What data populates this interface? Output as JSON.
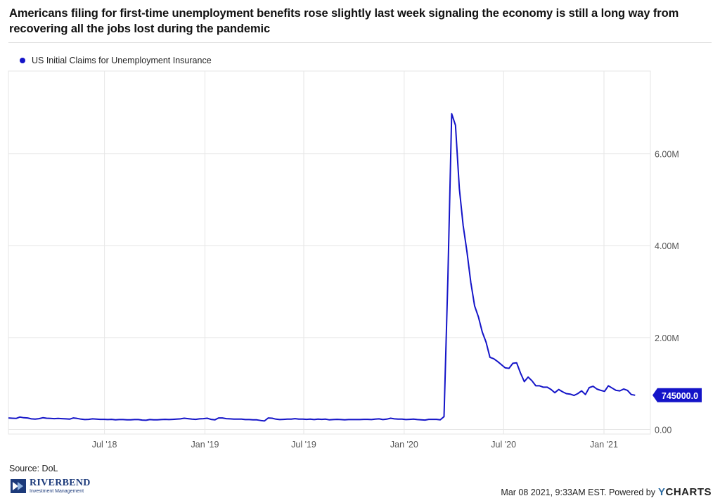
{
  "title": "Americans filing for first-time unemployment benefits rose slightly last week signaling the economy is still a long way from recovering all the jobs lost during the pandemic",
  "source": "Source: DoL",
  "logo": {
    "name": "RIVERBEND",
    "sub": "Investment Management"
  },
  "footer": {
    "timestamp": "Mar 08 2021, 9:33AM EST. Powered by",
    "brand_y": "Y",
    "brand_rest": "CHARTS"
  },
  "colors": {
    "series": "#1414c8",
    "grid": "#e6e6e6",
    "axis_text": "#555555"
  },
  "chart_data": {
    "type": "line",
    "title": "Americans filing for first-time unemployment benefits rose slightly last week signaling the economy is still a long way from recovering all the jobs lost during the pandemic",
    "xlabel": "",
    "ylabel": "",
    "x_range": [
      "2018-01-06",
      "2021-03-27"
    ],
    "ylim": [
      -100000,
      7800000
    ],
    "grid": true,
    "legend_position": "top-left",
    "x_ticks": [
      {
        "date": "2018-07-01",
        "label": "Jul '18"
      },
      {
        "date": "2019-01-01",
        "label": "Jan '19"
      },
      {
        "date": "2019-07-01",
        "label": "Jul '19"
      },
      {
        "date": "2020-01-01",
        "label": "Jan '20"
      },
      {
        "date": "2020-07-01",
        "label": "Jul '20"
      },
      {
        "date": "2021-01-01",
        "label": "Jan '21"
      }
    ],
    "y_ticks": [
      {
        "value": 0,
        "label": "0.00"
      },
      {
        "value": 2000000,
        "label": "2.00M"
      },
      {
        "value": 4000000,
        "label": "4.00M"
      },
      {
        "value": 6000000,
        "label": "6.00M"
      }
    ],
    "last_value_label": "745000.0",
    "series": [
      {
        "name": "US Initial Claims for Unemployment Insurance",
        "color": "#1414c8",
        "x": [
          "2018-01-06",
          "2018-01-13",
          "2018-01-20",
          "2018-01-27",
          "2018-02-03",
          "2018-02-10",
          "2018-02-17",
          "2018-02-24",
          "2018-03-03",
          "2018-03-10",
          "2018-03-17",
          "2018-03-24",
          "2018-03-31",
          "2018-04-07",
          "2018-04-14",
          "2018-04-21",
          "2018-04-28",
          "2018-05-05",
          "2018-05-12",
          "2018-05-19",
          "2018-05-26",
          "2018-06-02",
          "2018-06-09",
          "2018-06-16",
          "2018-06-23",
          "2018-06-30",
          "2018-07-07",
          "2018-07-14",
          "2018-07-21",
          "2018-07-28",
          "2018-08-04",
          "2018-08-11",
          "2018-08-18",
          "2018-08-25",
          "2018-09-01",
          "2018-09-08",
          "2018-09-15",
          "2018-09-22",
          "2018-09-29",
          "2018-10-06",
          "2018-10-13",
          "2018-10-20",
          "2018-10-27",
          "2018-11-03",
          "2018-11-10",
          "2018-11-17",
          "2018-11-24",
          "2018-12-01",
          "2018-12-08",
          "2018-12-15",
          "2018-12-22",
          "2018-12-29",
          "2019-01-05",
          "2019-01-12",
          "2019-01-19",
          "2019-01-26",
          "2019-02-02",
          "2019-02-09",
          "2019-02-16",
          "2019-02-23",
          "2019-03-02",
          "2019-03-09",
          "2019-03-16",
          "2019-03-23",
          "2019-03-30",
          "2019-04-06",
          "2019-04-13",
          "2019-04-20",
          "2019-04-27",
          "2019-05-04",
          "2019-05-11",
          "2019-05-18",
          "2019-05-25",
          "2019-06-01",
          "2019-06-08",
          "2019-06-15",
          "2019-06-22",
          "2019-06-29",
          "2019-07-06",
          "2019-07-13",
          "2019-07-20",
          "2019-07-27",
          "2019-08-03",
          "2019-08-10",
          "2019-08-17",
          "2019-08-24",
          "2019-08-31",
          "2019-09-07",
          "2019-09-14",
          "2019-09-21",
          "2019-09-28",
          "2019-10-05",
          "2019-10-12",
          "2019-10-19",
          "2019-10-26",
          "2019-11-02",
          "2019-11-09",
          "2019-11-16",
          "2019-11-23",
          "2019-11-30",
          "2019-12-07",
          "2019-12-14",
          "2019-12-21",
          "2019-12-28",
          "2020-01-04",
          "2020-01-11",
          "2020-01-18",
          "2020-01-25",
          "2020-02-01",
          "2020-02-08",
          "2020-02-15",
          "2020-02-22",
          "2020-02-29",
          "2020-03-07",
          "2020-03-14",
          "2020-03-21",
          "2020-03-28",
          "2020-04-04",
          "2020-04-11",
          "2020-04-18",
          "2020-04-25",
          "2020-05-02",
          "2020-05-09",
          "2020-05-16",
          "2020-05-23",
          "2020-05-30",
          "2020-06-06",
          "2020-06-13",
          "2020-06-20",
          "2020-06-27",
          "2020-07-04",
          "2020-07-11",
          "2020-07-18",
          "2020-07-25",
          "2020-08-01",
          "2020-08-08",
          "2020-08-15",
          "2020-08-22",
          "2020-08-29",
          "2020-09-05",
          "2020-09-12",
          "2020-09-19",
          "2020-09-26",
          "2020-10-03",
          "2020-10-10",
          "2020-10-17",
          "2020-10-24",
          "2020-10-31",
          "2020-11-07",
          "2020-11-14",
          "2020-11-21",
          "2020-11-28",
          "2020-12-05",
          "2020-12-12",
          "2020-12-19",
          "2020-12-26",
          "2021-01-02",
          "2021-01-09",
          "2021-01-16",
          "2021-01-23",
          "2021-01-30",
          "2021-02-06",
          "2021-02-13",
          "2021-02-20",
          "2021-02-27"
        ],
        "values": [
          250000,
          245000,
          240000,
          270000,
          255000,
          250000,
          230000,
          225000,
          235000,
          255000,
          245000,
          240000,
          235000,
          240000,
          235000,
          230000,
          225000,
          250000,
          240000,
          225000,
          215000,
          220000,
          230000,
          225000,
          220000,
          220000,
          215000,
          220000,
          210000,
          215000,
          215000,
          210000,
          210000,
          215000,
          215000,
          205000,
          200000,
          215000,
          210000,
          210000,
          215000,
          220000,
          215000,
          220000,
          225000,
          230000,
          245000,
          235000,
          225000,
          220000,
          230000,
          235000,
          245000,
          220000,
          210000,
          250000,
          250000,
          235000,
          230000,
          225000,
          225000,
          225000,
          215000,
          215000,
          210000,
          210000,
          195000,
          185000,
          250000,
          245000,
          225000,
          215000,
          220000,
          225000,
          225000,
          235000,
          225000,
          225000,
          220000,
          225000,
          215000,
          225000,
          220000,
          225000,
          210000,
          215000,
          220000,
          215000,
          210000,
          215000,
          215000,
          215000,
          215000,
          220000,
          220000,
          215000,
          225000,
          230000,
          215000,
          225000,
          245000,
          230000,
          225000,
          225000,
          215000,
          220000,
          225000,
          215000,
          210000,
          205000,
          220000,
          220000,
          220000,
          210000,
          280000,
          3300000,
          6870000,
          6620000,
          5240000,
          4440000,
          3870000,
          3200000,
          2690000,
          2450000,
          2120000,
          1900000,
          1570000,
          1540000,
          1480000,
          1410000,
          1340000,
          1330000,
          1440000,
          1450000,
          1230000,
          1040000,
          1140000,
          1060000,
          950000,
          950000,
          920000,
          920000,
          870000,
          800000,
          870000,
          820000,
          780000,
          770000,
          740000,
          780000,
          840000,
          760000,
          910000,
          940000,
          880000,
          850000,
          830000,
          950000,
          900000,
          850000,
          840000,
          880000,
          850000,
          760000,
          745000
        ]
      }
    ]
  }
}
